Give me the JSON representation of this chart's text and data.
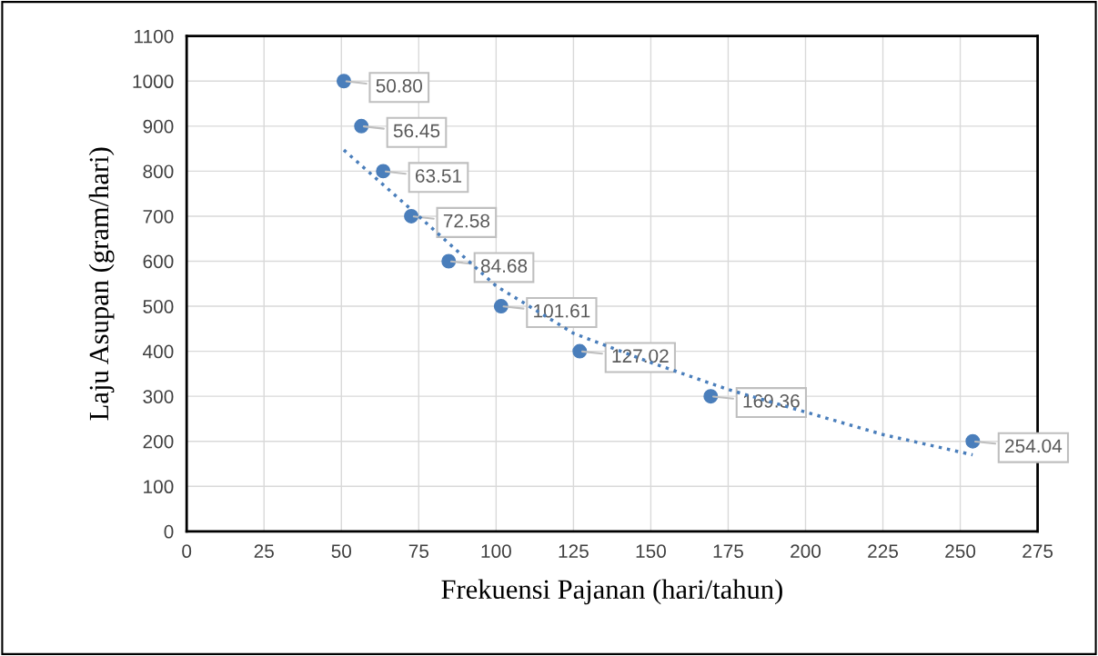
{
  "chart_data": {
    "type": "scatter",
    "xlabel": "Frekuensi Pajanan (hari/tahun)",
    "ylabel": "Laju Asupan (gram/hari)",
    "xlim": [
      0,
      275
    ],
    "xticks": [
      0,
      25,
      50,
      75,
      100,
      125,
      150,
      175,
      200,
      225,
      250,
      275
    ],
    "ylim": [
      0,
      1100
    ],
    "yticks": [
      0,
      100,
      200,
      300,
      400,
      500,
      600,
      700,
      800,
      900,
      1000,
      1100
    ],
    "grid": true,
    "series": [
      {
        "color": "#4a7ebb",
        "marker": "circle",
        "x": [
          50.8,
          56.45,
          63.51,
          72.58,
          84.68,
          101.61,
          127.02,
          169.36,
          254.04
        ],
        "values": [
          1000,
          900,
          800,
          700,
          600,
          500,
          400,
          300,
          200
        ]
      },
      {
        "type": "line",
        "color": "#4a7ebb",
        "line_style": "dotted",
        "x": [
          50.8,
          75,
          100,
          125,
          150,
          175,
          200,
          225,
          254
        ],
        "values": [
          847,
          700,
          545,
          440,
          375,
          315,
          265,
          215,
          170
        ]
      }
    ],
    "annotations": [
      {
        "text": "50.80",
        "x": 50.8,
        "y": 1000
      },
      {
        "text": "56.45",
        "x": 56.45,
        "y": 900
      },
      {
        "text": "63.51",
        "x": 63.51,
        "y": 800
      },
      {
        "text": "72.58",
        "x": 72.58,
        "y": 700
      },
      {
        "text": "84.68",
        "x": 84.68,
        "y": 600
      },
      {
        "text": "101.61",
        "x": 101.61,
        "y": 500
      },
      {
        "text": "127.02",
        "x": 127.02,
        "y": 400
      },
      {
        "text": "169.36",
        "x": 169.36,
        "y": 300
      },
      {
        "text": "254.04",
        "x": 254.04,
        "y": 200
      }
    ]
  }
}
